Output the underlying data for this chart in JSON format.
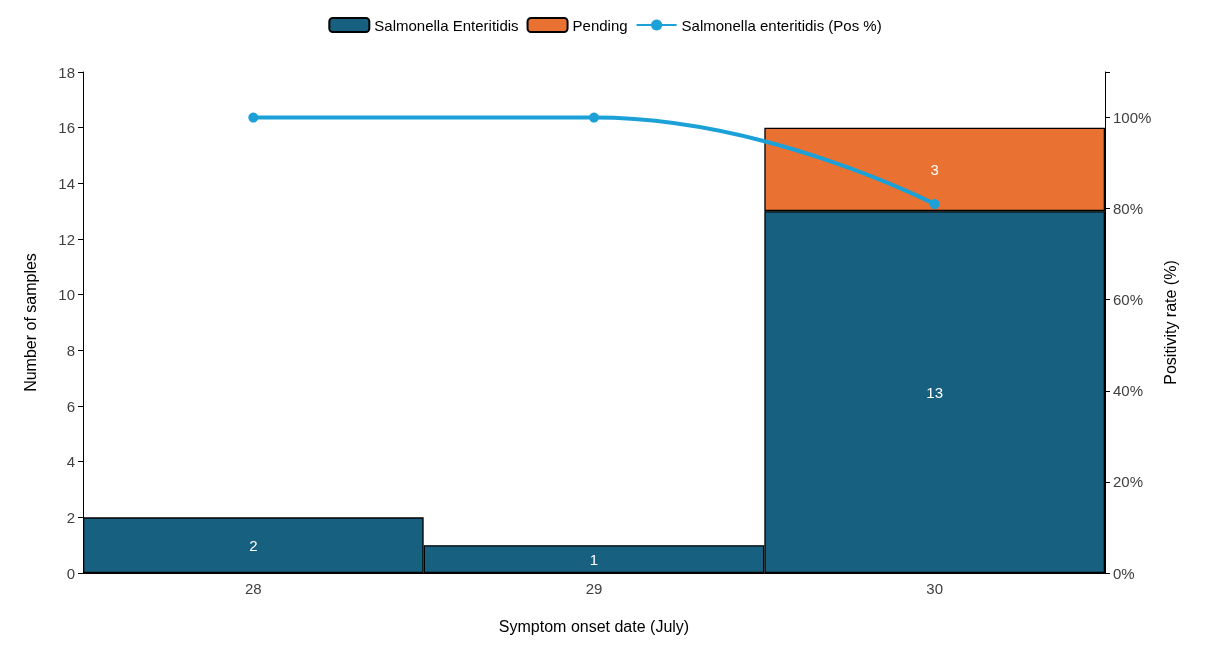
{
  "chart_data": {
    "type": "bar",
    "stacked": true,
    "xlabel": "Symptom onset date (July)",
    "ylabel": "Number of samples",
    "y2label": "Positivity rate (%)",
    "categories": [
      "28",
      "29",
      "30"
    ],
    "series": [
      {
        "name": "Salmonella Enteritidis",
        "color": "#17607f",
        "values": [
          2,
          1,
          13
        ],
        "value_labels": [
          "2",
          "1",
          "13"
        ]
      },
      {
        "name": "Pending",
        "color": "#e97132",
        "values": [
          null,
          null,
          3
        ],
        "value_labels": [
          null,
          null,
          "3"
        ]
      },
      {
        "name": "Salmonella enteritidis (Pos %)",
        "type": "line",
        "axis": "y2",
        "color": "#1ba1d8",
        "values": [
          100,
          100,
          81
        ],
        "marker": "circle",
        "line_style": "solid"
      }
    ],
    "ylim": [
      0,
      18
    ],
    "yticks": [
      0,
      2,
      4,
      6,
      8,
      10,
      12,
      14,
      16,
      18
    ],
    "y2lim": [
      0,
      110
    ],
    "y2ticks": [
      {
        "value": 0,
        "label": "0%"
      },
      {
        "value": 20,
        "label": "20%"
      },
      {
        "value": 40,
        "label": "40%"
      },
      {
        "value": 60,
        "label": "60%"
      },
      {
        "value": 80,
        "label": "80%"
      },
      {
        "value": 100,
        "label": "100%"
      }
    ],
    "grid": false,
    "legend": "top"
  }
}
